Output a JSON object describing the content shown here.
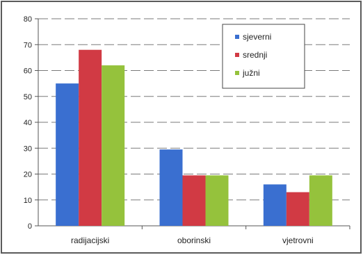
{
  "chart_data": {
    "type": "bar",
    "categories": [
      "radijacijski",
      "oborinski",
      "vjetrovni"
    ],
    "series": [
      {
        "name": "sjeverni",
        "values": [
          55,
          29.5,
          16
        ],
        "color": "#3a6fd0"
      },
      {
        "name": "srednji",
        "values": [
          68,
          19.5,
          13
        ],
        "color": "#d13a44"
      },
      {
        "name": "južni",
        "values": [
          62,
          19.5,
          19.5
        ],
        "color": "#95c23c"
      }
    ],
    "ylim": [
      0,
      80
    ],
    "yticks": [
      0,
      10,
      20,
      30,
      40,
      50,
      60,
      70,
      80
    ],
    "grid": true,
    "legend_position": "top-right",
    "title": "",
    "xlabel": "",
    "ylabel": ""
  }
}
